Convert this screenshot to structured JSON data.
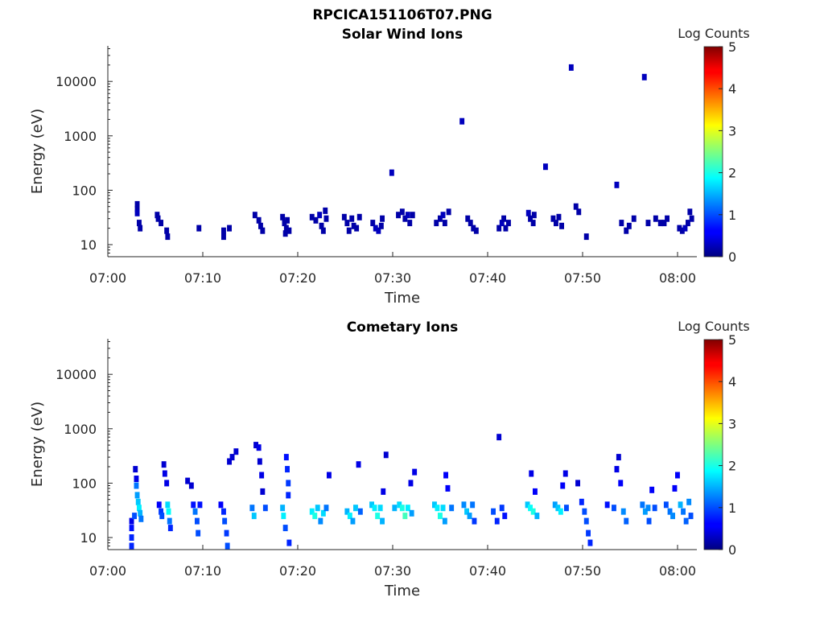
{
  "figure_title": "RPCICA151106T07.PNG",
  "colorbar": {
    "label": "Log Counts",
    "ticks": [
      "0",
      "1",
      "2",
      "3",
      "4",
      "5"
    ],
    "range": [
      0,
      5
    ],
    "colormap": "jet"
  },
  "chart_data": [
    {
      "type": "heatmap",
      "title": "Solar Wind Ions",
      "xlabel": "Time",
      "ylabel": "Energy (eV)",
      "x_ticks": [
        "07:00",
        "07:10",
        "07:20",
        "07:30",
        "07:40",
        "07:50",
        "08:00"
      ],
      "y_ticks": [
        "10",
        "100",
        "1000",
        "10000"
      ],
      "x_range_min": [
        0,
        62
      ],
      "y_scale": "log",
      "y_range": [
        6,
        45000
      ],
      "grid": false,
      "cells": [
        [
          3.1,
          55,
          0.2
        ],
        [
          3.1,
          45,
          0.2
        ],
        [
          3.1,
          38,
          0.3
        ],
        [
          3.3,
          25,
          0.2
        ],
        [
          3.4,
          20,
          0.2
        ],
        [
          5.2,
          35,
          0.2
        ],
        [
          5.3,
          30,
          0.2
        ],
        [
          5.6,
          25,
          0.2
        ],
        [
          6.2,
          18,
          0.2
        ],
        [
          6.3,
          14,
          0.2
        ],
        [
          9.6,
          20,
          0.2
        ],
        [
          12.2,
          18,
          0.2
        ],
        [
          12.2,
          14,
          0.2
        ],
        [
          12.8,
          20,
          0.2
        ],
        [
          15.5,
          35,
          0.2
        ],
        [
          15.9,
          28,
          0.2
        ],
        [
          16.1,
          22,
          0.2
        ],
        [
          16.3,
          18,
          0.2
        ],
        [
          18.4,
          32,
          0.2
        ],
        [
          18.6,
          25,
          0.2
        ],
        [
          18.8,
          20,
          0.2
        ],
        [
          18.7,
          16,
          0.2
        ],
        [
          18.9,
          28,
          0.2
        ],
        [
          19.1,
          18,
          0.2
        ],
        [
          21.5,
          32,
          0.2
        ],
        [
          21.9,
          28,
          0.2
        ],
        [
          22.3,
          35,
          0.3
        ],
        [
          22.5,
          22,
          0.2
        ],
        [
          22.7,
          18,
          0.2
        ],
        [
          22.9,
          42,
          0.2
        ],
        [
          23.0,
          30,
          0.2
        ],
        [
          24.9,
          32,
          0.2
        ],
        [
          25.2,
          25,
          0.2
        ],
        [
          25.4,
          18,
          0.2
        ],
        [
          25.7,
          30,
          0.2
        ],
        [
          25.9,
          22,
          0.2
        ],
        [
          26.2,
          20,
          0.2
        ],
        [
          26.5,
          32,
          0.2
        ],
        [
          27.9,
          25,
          0.2
        ],
        [
          28.2,
          20,
          0.3
        ],
        [
          28.5,
          18,
          0.3
        ],
        [
          28.8,
          22,
          0.2
        ],
        [
          28.9,
          30,
          0.2
        ],
        [
          29.9,
          210,
          0.3
        ],
        [
          30.6,
          35,
          0.2
        ],
        [
          31.0,
          40,
          0.2
        ],
        [
          31.3,
          30,
          0.2
        ],
        [
          31.6,
          35,
          0.3
        ],
        [
          31.8,
          25,
          0.2
        ],
        [
          32.1,
          35,
          0.2
        ],
        [
          34.6,
          25,
          0.2
        ],
        [
          35.0,
          30,
          0.2
        ],
        [
          35.3,
          35,
          0.3
        ],
        [
          35.5,
          25,
          0.2
        ],
        [
          35.9,
          40,
          0.2
        ],
        [
          37.3,
          1850,
          0.3
        ],
        [
          37.9,
          30,
          0.2
        ],
        [
          38.2,
          25,
          0.2
        ],
        [
          38.5,
          20,
          0.2
        ],
        [
          38.8,
          18,
          0.2
        ],
        [
          41.2,
          20,
          0.2
        ],
        [
          41.5,
          25,
          0.3
        ],
        [
          41.7,
          30,
          0.2
        ],
        [
          41.9,
          20,
          0.2
        ],
        [
          42.2,
          25,
          0.2
        ],
        [
          44.3,
          38,
          0.3
        ],
        [
          44.5,
          30,
          0.2
        ],
        [
          44.8,
          25,
          0.2
        ],
        [
          44.9,
          35,
          0.2
        ],
        [
          46.1,
          270,
          0.3
        ],
        [
          46.9,
          30,
          0.2
        ],
        [
          47.2,
          25,
          0.2
        ],
        [
          47.5,
          32,
          0.2
        ],
        [
          47.8,
          22,
          0.2
        ],
        [
          48.8,
          18000,
          0.3
        ],
        [
          49.3,
          50,
          0.2
        ],
        [
          49.6,
          40,
          0.2
        ],
        [
          50.4,
          14,
          0.2
        ],
        [
          53.6,
          125,
          0.3
        ],
        [
          54.1,
          25,
          0.2
        ],
        [
          54.6,
          18,
          0.2
        ],
        [
          54.9,
          22,
          0.2
        ],
        [
          55.4,
          30,
          0.2
        ],
        [
          56.5,
          12000,
          0.3
        ],
        [
          56.9,
          25,
          0.2
        ],
        [
          57.7,
          30,
          0.2
        ],
        [
          58.2,
          25,
          0.2
        ],
        [
          58.6,
          25,
          0.2
        ],
        [
          58.9,
          30,
          0.2
        ],
        [
          60.2,
          20,
          0.2
        ],
        [
          60.5,
          18,
          0.2
        ],
        [
          60.8,
          20,
          0.3
        ],
        [
          61.1,
          25,
          0.2
        ],
        [
          61.3,
          40,
          0.2
        ],
        [
          61.5,
          30,
          0.2
        ]
      ]
    },
    {
      "type": "heatmap",
      "title": "Cometary Ions",
      "xlabel": "Time",
      "ylabel": "Energy (eV)",
      "x_ticks": [
        "07:00",
        "07:10",
        "07:20",
        "07:30",
        "07:40",
        "07:50",
        "08:00"
      ],
      "y_ticks": [
        "10",
        "100",
        "1000",
        "10000"
      ],
      "x_range_min": [
        0,
        62
      ],
      "y_scale": "log",
      "y_range": [
        6,
        45000
      ],
      "grid": false,
      "cells": [
        [
          2.5,
          20,
          0.5
        ],
        [
          2.5,
          15,
          0.7
        ],
        [
          2.5,
          10,
          0.8
        ],
        [
          2.5,
          7,
          0.8
        ],
        [
          2.8,
          25,
          1.0
        ],
        [
          2.9,
          180,
          0.4
        ],
        [
          3.0,
          120,
          0.5
        ],
        [
          3.0,
          90,
          1.2
        ],
        [
          3.1,
          60,
          1.4
        ],
        [
          3.2,
          45,
          1.6
        ],
        [
          3.3,
          35,
          1.8
        ],
        [
          3.4,
          28,
          1.5
        ],
        [
          3.5,
          22,
          1.2
        ],
        [
          5.4,
          40,
          0.6
        ],
        [
          5.6,
          30,
          0.9
        ],
        [
          5.7,
          25,
          1.0
        ],
        [
          5.9,
          220,
          0.4
        ],
        [
          6.0,
          150,
          0.5
        ],
        [
          6.2,
          100,
          0.5
        ],
        [
          6.3,
          40,
          1.7
        ],
        [
          6.4,
          30,
          1.9
        ],
        [
          6.5,
          20,
          1.2
        ],
        [
          6.6,
          15,
          0.8
        ],
        [
          8.4,
          110,
          0.4
        ],
        [
          8.8,
          90,
          0.4
        ],
        [
          9.0,
          40,
          0.7
        ],
        [
          9.2,
          30,
          1.2
        ],
        [
          9.4,
          20,
          1.0
        ],
        [
          9.5,
          12,
          1.0
        ],
        [
          9.7,
          40,
          0.7
        ],
        [
          11.9,
          40,
          0.6
        ],
        [
          12.2,
          30,
          0.8
        ],
        [
          12.3,
          20,
          1.0
        ],
        [
          12.5,
          12,
          0.9
        ],
        [
          12.6,
          7,
          1.0
        ],
        [
          12.8,
          250,
          0.4
        ],
        [
          13.1,
          300,
          0.4
        ],
        [
          13.5,
          380,
          0.4
        ],
        [
          15.2,
          35,
          1.2
        ],
        [
          15.4,
          25,
          1.6
        ],
        [
          15.6,
          500,
          0.4
        ],
        [
          15.9,
          450,
          0.5
        ],
        [
          16.0,
          250,
          0.4
        ],
        [
          16.2,
          140,
          0.5
        ],
        [
          16.3,
          70,
          0.4
        ],
        [
          16.6,
          35,
          1.0
        ],
        [
          18.4,
          35,
          1.5
        ],
        [
          18.5,
          25,
          1.8
        ],
        [
          18.7,
          15,
          1.0
        ],
        [
          18.8,
          300,
          0.7
        ],
        [
          18.9,
          180,
          0.8
        ],
        [
          19.0,
          100,
          0.9
        ],
        [
          19.0,
          60,
          0.8
        ],
        [
          19.1,
          8,
          0.8
        ],
        [
          21.5,
          30,
          1.8
        ],
        [
          21.8,
          25,
          2.0
        ],
        [
          22.1,
          35,
          1.6
        ],
        [
          22.4,
          20,
          1.3
        ],
        [
          22.7,
          28,
          1.7
        ],
        [
          23.0,
          35,
          1.2
        ],
        [
          23.3,
          140,
          0.5
        ],
        [
          25.2,
          30,
          1.5
        ],
        [
          25.5,
          25,
          1.8
        ],
        [
          25.8,
          20,
          1.4
        ],
        [
          26.1,
          35,
          1.6
        ],
        [
          26.4,
          220,
          0.5
        ],
        [
          26.6,
          30,
          1.1
        ],
        [
          27.8,
          40,
          1.6
        ],
        [
          28.1,
          35,
          1.8
        ],
        [
          28.4,
          25,
          2.0
        ],
        [
          28.7,
          35,
          1.7
        ],
        [
          28.9,
          20,
          1.5
        ],
        [
          29.0,
          70,
          0.5
        ],
        [
          29.3,
          330,
          0.4
        ],
        [
          30.2,
          35,
          1.5
        ],
        [
          30.7,
          40,
          1.7
        ],
        [
          31.0,
          35,
          2.0
        ],
        [
          31.3,
          25,
          2.2
        ],
        [
          31.6,
          35,
          1.8
        ],
        [
          32.0,
          28,
          1.4
        ],
        [
          31.9,
          100,
          0.5
        ],
        [
          32.3,
          160,
          0.5
        ],
        [
          34.4,
          40,
          1.6
        ],
        [
          34.7,
          35,
          1.8
        ],
        [
          35.0,
          25,
          2.0
        ],
        [
          35.3,
          35,
          1.7
        ],
        [
          35.5,
          20,
          1.4
        ],
        [
          35.6,
          140,
          0.6
        ],
        [
          35.8,
          80,
          0.6
        ],
        [
          36.2,
          35,
          1.2
        ],
        [
          37.5,
          40,
          1.3
        ],
        [
          37.8,
          30,
          1.6
        ],
        [
          38.1,
          25,
          1.4
        ],
        [
          38.4,
          40,
          1.2
        ],
        [
          38.6,
          20,
          0.9
        ],
        [
          40.6,
          30,
          1.0
        ],
        [
          41.0,
          20,
          0.8
        ],
        [
          41.2,
          700,
          0.4
        ],
        [
          41.5,
          35,
          0.9
        ],
        [
          41.8,
          25,
          0.7
        ],
        [
          44.2,
          40,
          1.6
        ],
        [
          44.5,
          35,
          1.9
        ],
        [
          44.8,
          30,
          2.0
        ],
        [
          44.6,
          150,
          0.5
        ],
        [
          45.0,
          70,
          0.6
        ],
        [
          45.2,
          25,
          1.5
        ],
        [
          47.1,
          40,
          1.4
        ],
        [
          47.4,
          35,
          1.6
        ],
        [
          47.7,
          30,
          1.8
        ],
        [
          47.9,
          90,
          0.6
        ],
        [
          48.2,
          150,
          0.5
        ],
        [
          48.3,
          35,
          1.0
        ],
        [
          49.5,
          100,
          0.4
        ],
        [
          49.9,
          45,
          0.8
        ],
        [
          50.2,
          30,
          1.0
        ],
        [
          50.4,
          20,
          1.0
        ],
        [
          50.6,
          12,
          0.9
        ],
        [
          50.8,
          8,
          0.8
        ],
        [
          52.6,
          40,
          0.7
        ],
        [
          53.3,
          35,
          1.0
        ],
        [
          53.6,
          180,
          0.5
        ],
        [
          53.8,
          300,
          0.4
        ],
        [
          54.0,
          100,
          0.6
        ],
        [
          54.3,
          30,
          1.3
        ],
        [
          54.6,
          20,
          1.1
        ],
        [
          56.3,
          40,
          1.2
        ],
        [
          56.6,
          30,
          1.4
        ],
        [
          56.9,
          35,
          1.3
        ],
        [
          57.0,
          20,
          1.0
        ],
        [
          57.3,
          75,
          0.6
        ],
        [
          57.6,
          35,
          1.0
        ],
        [
          58.8,
          40,
          1.0
        ],
        [
          59.2,
          30,
          1.2
        ],
        [
          59.5,
          25,
          1.3
        ],
        [
          59.7,
          80,
          0.6
        ],
        [
          60.0,
          140,
          0.6
        ],
        [
          60.3,
          40,
          1.5
        ],
        [
          60.6,
          30,
          1.2
        ],
        [
          60.9,
          20,
          1.1
        ],
        [
          61.2,
          45,
          1.3
        ],
        [
          61.4,
          25,
          1.0
        ]
      ]
    }
  ]
}
